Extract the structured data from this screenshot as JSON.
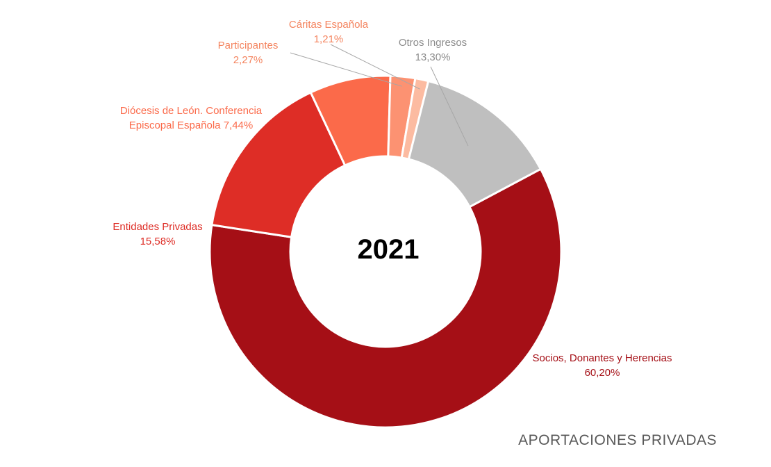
{
  "chart_data": {
    "type": "pie",
    "donut": true,
    "center_label": "2021",
    "footer_title": "APORTACIONES PRIVADAS",
    "slices": [
      {
        "name": "Socios, Donantes y Herencias",
        "value_text": "60,20%",
        "value": 60.2,
        "color": "#a50f16"
      },
      {
        "name": "Entidades Privadas",
        "value_text": "15,58%",
        "value": 15.58,
        "color": "#de2d26"
      },
      {
        "name": "Diócesis de León. Conferencia",
        "name_line2_prefix": "Episcopal Española",
        "value_text": "7,44%",
        "value": 7.44,
        "color": "#fb6a4a"
      },
      {
        "name": "Participantes",
        "value_text": "2,27%",
        "value": 2.27,
        "color": "#fc9272"
      },
      {
        "name": "Cáritas Española",
        "value_text": "1,21%",
        "value": 1.21,
        "color": "#fcbba1"
      },
      {
        "name": "Otros Ingresos",
        "value_text": "13,30%",
        "value": 13.3,
        "color": "#bfbfbf"
      }
    ],
    "label_colors": [
      "#a50f16",
      "#de2d26",
      "#fb6a4a",
      "#f4845f",
      "#f4845f",
      "#8c8c8c"
    ]
  }
}
